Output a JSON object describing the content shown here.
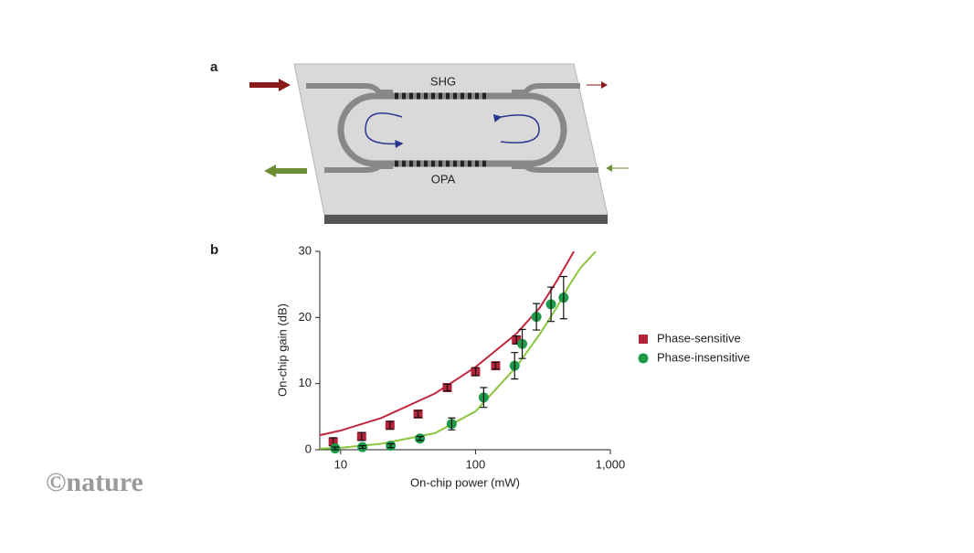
{
  "diagram": {
    "panel_label": "a",
    "labels": [
      "SHG",
      "OPA"
    ]
  },
  "watermark": "©nature",
  "chart_data": {
    "type": "scatter",
    "panel_label": "b",
    "x_label": "On-chip power (mW)",
    "y_label": "On-chip gain (dB)",
    "x_scale": "log",
    "xlim": [
      7,
      1000
    ],
    "xticks": [
      10,
      100,
      {
        "value": 1000,
        "label": "1,000"
      }
    ],
    "ylim": [
      0,
      30
    ],
    "yticks": [
      0,
      10,
      20,
      30
    ],
    "grid": false,
    "legend": "right",
    "series": [
      {
        "name": "Phase-sensitive",
        "color": "#b5233a",
        "marker": "square",
        "x": [
          8.8,
          14.3,
          23.2,
          37.5,
          61.7,
          100,
          141,
          201
        ],
        "values": [
          1.2,
          2.0,
          3.7,
          5.4,
          9.4,
          11.8,
          12.7,
          16.6
        ],
        "errors": [
          0.6,
          0.6,
          0.6,
          0.5,
          0.5,
          0.6,
          0.5,
          0.6
        ]
      },
      {
        "name": "Phase-insensitive",
        "color": "#1f9a4a",
        "marker": "circle",
        "x": [
          9.1,
          14.5,
          23.5,
          38.7,
          66.6,
          115,
          195,
          222,
          283,
          363,
          450
        ],
        "values": [
          0.2,
          0.4,
          0.6,
          1.7,
          3.9,
          7.9,
          12.7,
          16.0,
          20.1,
          22.0,
          23.0
        ],
        "errors": [
          0.2,
          0.2,
          0.3,
          0.3,
          0.9,
          1.5,
          2.0,
          2.2,
          2.0,
          2.6,
          3.2
        ]
      }
    ],
    "fits": [
      {
        "color": "#c0283e",
        "x": [
          7,
          10,
          20,
          50,
          100,
          200,
          300,
          400,
          537
        ],
        "values": [
          2.2,
          2.9,
          4.8,
          8.5,
          12.5,
          17.5,
          21.5,
          25.5,
          30
        ]
      },
      {
        "color": "#8cc63f",
        "x": [
          7,
          10,
          20,
          50,
          100,
          200,
          300,
          400,
          500,
          600,
          780
        ],
        "values": [
          0.15,
          0.3,
          0.9,
          2.5,
          5.8,
          12.5,
          17.5,
          21.5,
          25,
          27.5,
          30
        ]
      }
    ]
  }
}
